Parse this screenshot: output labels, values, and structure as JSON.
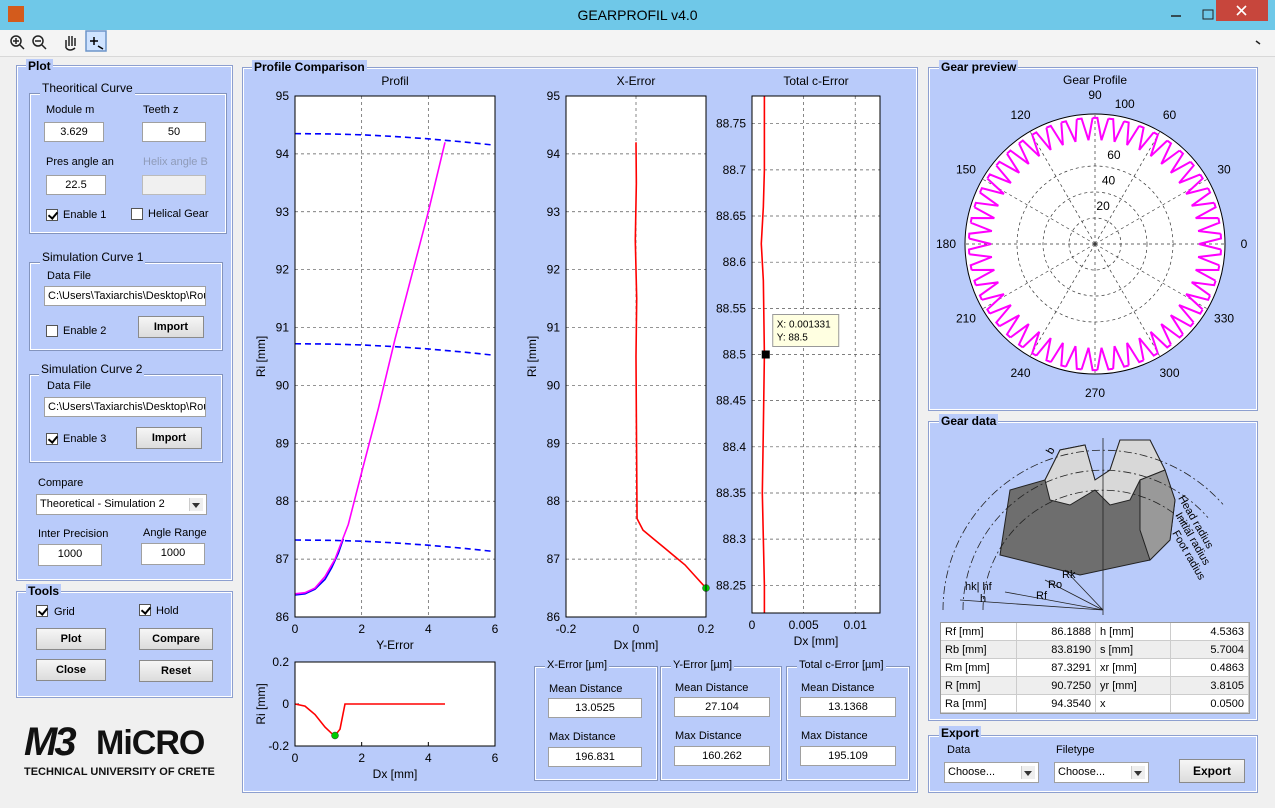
{
  "window": {
    "title": "GEARPROFIL v4.0"
  },
  "plot_panel": {
    "title": "Plot",
    "theoretical": {
      "title": "Theoritical Curve",
      "module_label": "Module m",
      "module_value": "3.629",
      "teeth_label": "Teeth z",
      "teeth_value": "50",
      "pres_label": "Pres angle an",
      "pres_value": "22.5",
      "helix_label": "Helix angle B",
      "enable": {
        "label": "Enable 1",
        "checked": true
      },
      "helical": {
        "label": "Helical Gear",
        "checked": false
      }
    },
    "sim1": {
      "title": "Simulation Curve 1",
      "file_label": "Data File",
      "file_value": "C:\\Users\\Taxiarchis\\Desktop\\Rou",
      "enable": {
        "label": "Enable 2",
        "checked": false
      },
      "import": "Import"
    },
    "sim2": {
      "title": "Simulation Curve 2",
      "file_label": "Data File",
      "file_value": "C:\\Users\\Taxiarchis\\Desktop\\Rou",
      "enable": {
        "label": "Enable 3",
        "checked": true
      },
      "import": "Import"
    },
    "compare_label": "Compare",
    "compare_value": "Theoretical - Simulation 2",
    "inter_label": "Inter Precision",
    "inter_value": "1000",
    "angle_label": "Angle Range",
    "angle_value": "1000"
  },
  "tools": {
    "title": "Tools",
    "grid": {
      "label": "Grid",
      "checked": true
    },
    "hold": {
      "label": "Hold",
      "checked": true
    },
    "plot": "Plot",
    "compare": "Compare",
    "close": "Close",
    "reset": "Reset"
  },
  "logo": {
    "mark": "M3",
    "name": "MiCRO",
    "subtitle": "TECHNICAL UNIVERSITY OF CRETE"
  },
  "profile_comparison": {
    "title": "Profile Comparison",
    "x_error": {
      "title": "X-Error [µm]",
      "mean_label": "Mean Distance",
      "mean_value": "13.0525",
      "max_label": "Max Distance",
      "max_value": "196.831"
    },
    "y_error": {
      "title": "Y-Error [µm]",
      "mean_label": "Mean Distance",
      "mean_value": "27.104",
      "max_label": "Max Distance",
      "max_value": "160.262"
    },
    "c_error": {
      "title": "Total c-Error [µm]",
      "mean_label": "Mean Distance",
      "mean_value": "13.1368",
      "max_label": "Max Distance",
      "max_value": "195.109"
    }
  },
  "gear_preview": {
    "title": "Gear preview"
  },
  "gear_data": {
    "title": "Gear data",
    "figure_labels": {
      "b": "b",
      "head": "Head radius",
      "initial": "Initial radius",
      "foot": "Foot radius",
      "rk": "Rk",
      "ro": "Ro",
      "rf": "Rf",
      "hkhf": "hk| hf",
      "h": "h"
    },
    "rows": [
      [
        "Rf [mm]",
        "86.1888",
        "h [mm]",
        "4.5363"
      ],
      [
        "Rb [mm]",
        "83.8190",
        "s [mm]",
        "5.7004"
      ],
      [
        "Rm [mm]",
        "87.3291",
        "xr [mm]",
        "0.4863"
      ],
      [
        "R [mm]",
        "90.7250",
        "yr [mm]",
        "3.8105"
      ],
      [
        "Ra [mm]",
        "94.3540",
        "x",
        "0.0500"
      ]
    ]
  },
  "export": {
    "title": "Export",
    "data_label": "Data",
    "data_value": "Choose...",
    "filetype_label": "Filetype",
    "filetype_value": "Choose...",
    "button": "Export"
  },
  "chart_data": [
    {
      "type": "line",
      "title": "Profil",
      "xlabel": "Y-Error",
      "ylabel": "Ri [mm]",
      "xlim": [
        0,
        6
      ],
      "ylim": [
        86,
        95
      ],
      "xticks": [
        0,
        2,
        4,
        6
      ],
      "yticks": [
        86,
        87,
        88,
        89,
        90,
        91,
        92,
        93,
        94,
        95
      ],
      "grid": true,
      "series": [
        {
          "color": "#0000ff",
          "style": "dashed",
          "x": [
            0,
            1,
            2,
            3,
            4,
            5,
            6
          ],
          "values": [
            94.35,
            94.345,
            94.33,
            94.3,
            94.26,
            94.21,
            94.15
          ]
        },
        {
          "color": "#0000ff",
          "style": "dashed",
          "x": [
            0,
            1,
            2,
            3,
            4,
            5,
            6
          ],
          "values": [
            90.72,
            90.715,
            90.7,
            90.67,
            90.63,
            90.58,
            90.52
          ]
        },
        {
          "color": "#0000ff",
          "style": "dashed",
          "x": [
            0,
            1,
            2,
            3,
            4,
            5,
            6
          ],
          "values": [
            87.33,
            87.325,
            87.31,
            87.28,
            87.24,
            87.19,
            87.13
          ]
        },
        {
          "color": "#0000ff",
          "style": "solid",
          "x": [
            0,
            0.3,
            0.6,
            0.9,
            1.1,
            1.3,
            1.45
          ],
          "values": [
            86.38,
            86.4,
            86.48,
            86.65,
            86.85,
            87.1,
            87.35
          ]
        },
        {
          "color": "#ff00ff",
          "style": "solid",
          "x": [
            0,
            0.3,
            0.6,
            0.9,
            1.2,
            1.4,
            1.6,
            2,
            2.5,
            3,
            3.5,
            4,
            4.5
          ],
          "values": [
            86.4,
            86.42,
            86.5,
            86.7,
            87,
            87.3,
            87.6,
            88.5,
            89.6,
            90.8,
            91.9,
            93,
            94.2
          ]
        }
      ]
    },
    {
      "type": "line",
      "xlabel": "Dx [mm]",
      "ylabel": "Ri [mm]",
      "xlim": [
        0,
        6
      ],
      "ylim": [
        -0.2,
        0.2
      ],
      "xticks": [
        0,
        2,
        4,
        6
      ],
      "yticks": [
        -0.2,
        0,
        0.2
      ],
      "grid": false,
      "series": [
        {
          "color": "#ff0000",
          "style": "solid",
          "x": [
            0,
            0.3,
            0.6,
            0.9,
            1.1,
            1.2,
            1.35,
            1.5,
            2,
            3,
            4,
            4.5
          ],
          "values": [
            0,
            -0.01,
            -0.05,
            -0.11,
            -0.14,
            -0.15,
            -0.12,
            0,
            0,
            0,
            0,
            0
          ]
        },
        {
          "color": "#00cc00",
          "marker": "circle",
          "x": [
            1.2
          ],
          "values": [
            -0.15
          ]
        }
      ]
    },
    {
      "type": "line",
      "title": "X-Error",
      "xlabel": "Dx [mm]",
      "ylabel": "Ri [mm]",
      "xlim": [
        -0.2,
        0.2
      ],
      "ylim": [
        86,
        95
      ],
      "xticks": [
        -0.2,
        0,
        0.2
      ],
      "yticks": [
        86,
        87,
        88,
        89,
        90,
        91,
        92,
        93,
        94,
        95
      ],
      "grid": true,
      "series": [
        {
          "color": "#ff0000",
          "style": "solid",
          "x": [
            0,
            0.001,
            -0.002,
            0.002,
            0,
            0.001,
            0.003,
            0.02,
            0.05,
            0.08,
            0.11,
            0.14,
            0.17,
            0.2
          ],
          "values": [
            94.2,
            93.5,
            92.5,
            91.5,
            90.5,
            89.5,
            87.7,
            87.5,
            87.35,
            87.2,
            87.05,
            86.9,
            86.7,
            86.5
          ]
        },
        {
          "color": "#00cc00",
          "marker": "circle",
          "x": [
            0.2
          ],
          "values": [
            86.5
          ]
        }
      ]
    },
    {
      "type": "line",
      "title": "Total c-Error",
      "xlabel": "Dx [mm]",
      "xlim": [
        0,
        0.0124
      ],
      "ylim": [
        88.22,
        88.78
      ],
      "xticks": [
        0,
        0.005,
        0.01
      ],
      "yticks": [
        88.25,
        88.3,
        88.35,
        88.4,
        88.45,
        88.5,
        88.55,
        88.6,
        88.65,
        88.7,
        88.75
      ],
      "grid": true,
      "series": [
        {
          "color": "#ff0000",
          "style": "solid",
          "x": [
            0.0012,
            0.0012,
            0.0011,
            0.0009,
            0.0011,
            0.0012,
            0.0011,
            0.001,
            0.0011,
            0.0012,
            0.0012
          ],
          "values": [
            88.78,
            88.7,
            88.66,
            88.62,
            88.58,
            88.5,
            88.42,
            88.35,
            88.3,
            88.25,
            88.22
          ]
        },
        {
          "color": "#000000",
          "marker": "square",
          "x": [
            0.001331
          ],
          "values": [
            88.5
          ]
        }
      ],
      "annotations": [
        "X: 0.001331",
        "Y: 88.5"
      ]
    },
    {
      "type": "polar",
      "title": "Gear Profile",
      "color": "#ff00ff",
      "rlim": [
        0,
        100
      ],
      "rticks": [
        20,
        40,
        60,
        100
      ],
      "theta_ticks": [
        0,
        30,
        60,
        90,
        120,
        150,
        180,
        210,
        240,
        270,
        300,
        330
      ]
    }
  ]
}
